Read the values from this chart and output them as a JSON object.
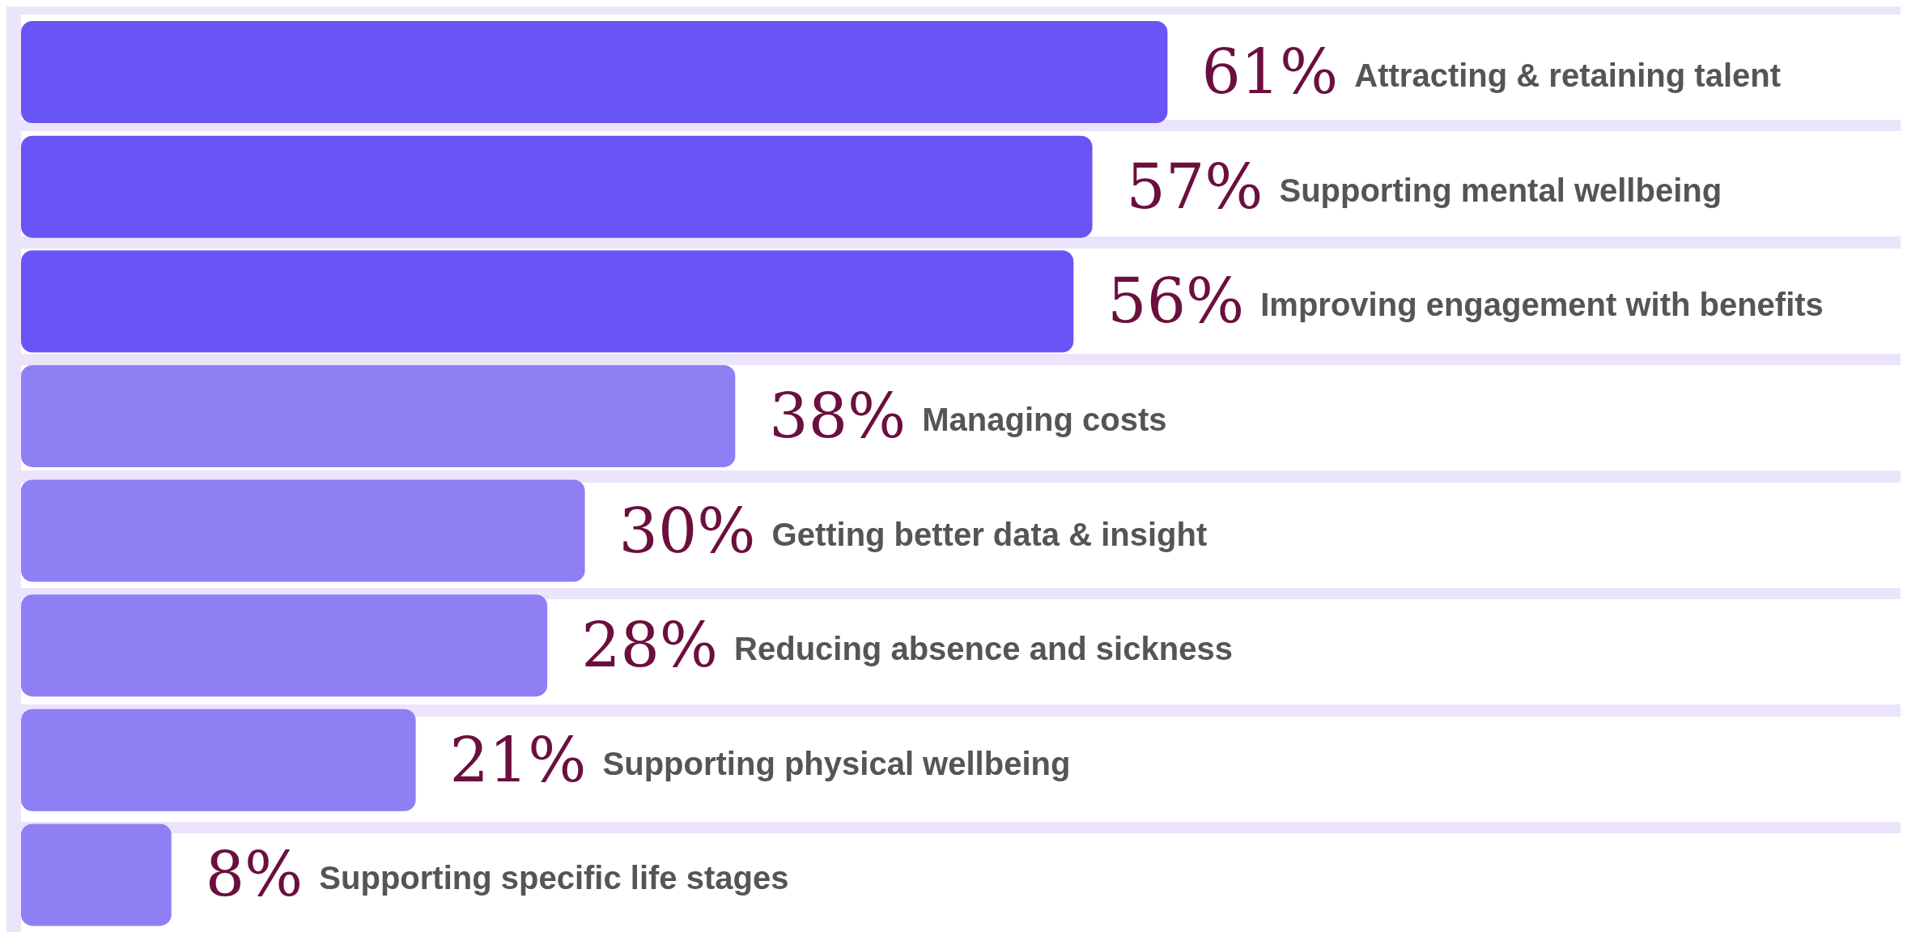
{
  "chart_data": {
    "type": "bar",
    "orientation": "horizontal",
    "categories": [
      "Attracting & retaining talent",
      "Supporting mental wellbeing",
      "Improving engagement with benefits",
      "Managing costs",
      "Getting better data & insight",
      "Reducing absence and sickness",
      "Supporting physical wellbeing",
      "Supporting specific life stages"
    ],
    "values": [
      61,
      57,
      56,
      38,
      30,
      28,
      21,
      8
    ],
    "value_labels": [
      "61%",
      "57%",
      "56%",
      "38%",
      "30%",
      "28%",
      "21%",
      "8%"
    ],
    "colors": [
      "#6955f5",
      "#6955f5",
      "#6955f5",
      "#8e7ff5",
      "#8e7ff5",
      "#8e7ff5",
      "#8e7ff5",
      "#8e7ff5"
    ],
    "xlim": [
      0,
      100
    ],
    "tick_labels": false
  }
}
